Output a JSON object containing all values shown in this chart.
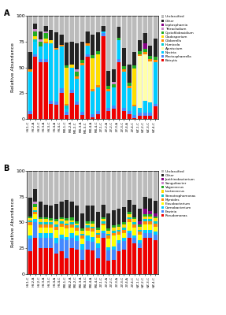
{
  "panel_A": {
    "categories": [
      "HY-1-C",
      "HY-2-A",
      "HY-2-C",
      "HY-3-A",
      "HY-3-C",
      "HY-4-A",
      "HY-4-C",
      "MX-1-C",
      "MX-2-A",
      "MX-2-C",
      "MX-3-A",
      "MX-3-C",
      "MX-4-A",
      "MX-4-C",
      "ZY-1-C",
      "ZY-2-A",
      "ZY-2-C",
      "ZY-3-A",
      "ZY-3-C",
      "ZY-4-A",
      "ZY-4-C",
      "HZ-1-C",
      "HZ-2-C",
      "HZ-3-C",
      "HZ-4-C"
    ],
    "series": {
      "Botrytis": [
        5,
        60,
        55,
        55,
        15,
        14,
        25,
        4,
        25,
        14,
        4,
        60,
        2,
        5,
        80,
        8,
        10,
        55,
        8,
        5,
        1,
        3,
        3,
        3,
        12
      ],
      "Plectosphaerella": [
        3,
        3,
        3,
        3,
        3,
        3,
        5,
        3,
        3,
        3,
        3,
        3,
        3,
        3,
        3,
        3,
        3,
        3,
        3,
        3,
        3,
        3,
        3,
        3,
        3
      ],
      "Nectria": [
        38,
        12,
        12,
        15,
        55,
        50,
        40,
        3,
        22,
        22,
        45,
        8,
        22,
        23,
        2,
        16,
        18,
        18,
        35,
        22,
        8,
        5,
        12,
        10,
        40
      ],
      "Ajoniscium": [
        0,
        0,
        0,
        0,
        0,
        0,
        0,
        0,
        0,
        0,
        0,
        0,
        0,
        0,
        0,
        0,
        0,
        0,
        0,
        0,
        0,
        50,
        45,
        40,
        0
      ],
      "Humicola": [
        0,
        2,
        0,
        0,
        0,
        0,
        0,
        3,
        0,
        0,
        0,
        0,
        0,
        0,
        0,
        0,
        0,
        0,
        0,
        0,
        0,
        0,
        0,
        0,
        0
      ],
      "Gibberella": [
        2,
        0,
        0,
        2,
        0,
        2,
        2,
        2,
        0,
        2,
        2,
        2,
        2,
        2,
        0,
        2,
        0,
        0,
        2,
        2,
        2,
        2,
        2,
        2,
        2
      ],
      "Cladosporium": [
        0,
        3,
        0,
        3,
        3,
        0,
        0,
        35,
        3,
        0,
        0,
        0,
        30,
        30,
        0,
        0,
        0,
        0,
        0,
        0,
        35,
        0,
        0,
        0,
        0
      ],
      "Cystofilobasidium": [
        0,
        5,
        5,
        5,
        0,
        0,
        0,
        2,
        0,
        5,
        3,
        0,
        3,
        3,
        0,
        3,
        3,
        3,
        3,
        3,
        3,
        3,
        3,
        3,
        3
      ],
      "Tetracladium": [
        0,
        2,
        2,
        2,
        0,
        0,
        0,
        0,
        0,
        2,
        0,
        0,
        0,
        0,
        0,
        0,
        2,
        0,
        0,
        0,
        0,
        0,
        0,
        0,
        0
      ],
      "Leptosphaeria": [
        0,
        0,
        0,
        0,
        0,
        0,
        0,
        0,
        0,
        0,
        0,
        0,
        0,
        0,
        0,
        0,
        0,
        0,
        0,
        0,
        0,
        0,
        5,
        0,
        0
      ],
      "Other": [
        17,
        5,
        8,
        5,
        10,
        15,
        10,
        22,
        22,
        25,
        18,
        12,
        20,
        18,
        5,
        15,
        12,
        10,
        18,
        18,
        13,
        10,
        10,
        10,
        18
      ],
      "Unclassified": [
        35,
        8,
        15,
        10,
        14,
        16,
        18,
        26,
        25,
        27,
        25,
        15,
        18,
        16,
        10,
        53,
        52,
        11,
        31,
        47,
        35,
        24,
        17,
        29,
        22
      ]
    },
    "colors": {
      "Botrytis": "#EE0000",
      "Plectosphaerella": "#4488FF",
      "Nectria": "#00CCFF",
      "Ajoniscium": "#FFFFAA",
      "Humicola": "#00CCCC",
      "Gibberella": "#FF8800",
      "Cladosporium": "#FFDD00",
      "Cystofilobasidium": "#22AA22",
      "Tetracladium": "#CC88CC",
      "Leptosphaeria": "#880088",
      "Other": "#222222",
      "Unclassified": "#BBBBBB"
    },
    "legend_order": [
      "Unclassified",
      "Other",
      "Leptosphaeria",
      "Tetracladium",
      "Cystofilobasidium",
      "Cladosporium",
      "Gibberella",
      "Humicola",
      "Ajoniscium",
      "Nectria",
      "Plectosphaerella",
      "Botrytis"
    ]
  },
  "panel_B": {
    "categories": [
      "HY-1-C",
      "HY-2-A",
      "HY-2-C",
      "HY-3-A",
      "HY-3-C",
      "HY-4-A",
      "HY-4-C",
      "MX-1-C",
      "MX-2-A",
      "MX-2-C",
      "MX-3-A",
      "MX-3-C",
      "MX-4-A",
      "MX-4-C",
      "ZY-1-C",
      "ZY-2-A",
      "ZY-2-C",
      "ZY-3-A",
      "ZY-3-C",
      "ZY-4-A",
      "ZY-4-C",
      "HZ-1-C",
      "HZ-2-C",
      "HZ-3-C",
      "HZ-4-C"
    ],
    "series": {
      "Pseudomonas": [
        22,
        35,
        25,
        25,
        25,
        20,
        22,
        15,
        25,
        24,
        14,
        24,
        23,
        15,
        35,
        13,
        14,
        22,
        24,
        35,
        30,
        25,
        35,
        35,
        33
      ],
      "Erwinia": [
        12,
        15,
        10,
        10,
        10,
        10,
        12,
        18,
        10,
        8,
        10,
        8,
        8,
        10,
        5,
        10,
        10,
        8,
        8,
        5,
        5,
        5,
        5,
        5,
        5
      ],
      "Carnobacterium": [
        3,
        3,
        5,
        5,
        5,
        5,
        4,
        3,
        5,
        5,
        5,
        5,
        5,
        5,
        2,
        3,
        3,
        3,
        3,
        2,
        2,
        3,
        3,
        3,
        3
      ],
      "Flavobacterium": [
        10,
        5,
        5,
        5,
        5,
        8,
        8,
        8,
        5,
        5,
        5,
        5,
        5,
        5,
        5,
        8,
        10,
        5,
        5,
        8,
        8,
        5,
        5,
        5,
        5
      ],
      "Myroides": [
        3,
        2,
        3,
        3,
        3,
        3,
        3,
        3,
        3,
        3,
        3,
        3,
        3,
        3,
        2,
        3,
        3,
        3,
        3,
        3,
        3,
        3,
        3,
        3,
        3
      ],
      "Stenotrophomonas": [
        2,
        2,
        2,
        2,
        2,
        2,
        2,
        2,
        2,
        2,
        2,
        2,
        2,
        2,
        2,
        2,
        2,
        2,
        2,
        2,
        2,
        2,
        2,
        2,
        2
      ],
      "Lactococcus": [
        2,
        3,
        3,
        3,
        2,
        3,
        2,
        3,
        2,
        2,
        3,
        2,
        3,
        3,
        2,
        3,
        3,
        3,
        3,
        3,
        3,
        3,
        3,
        3,
        3
      ],
      "Vagococcus": [
        2,
        3,
        2,
        2,
        2,
        2,
        2,
        2,
        3,
        2,
        2,
        2,
        2,
        2,
        2,
        2,
        2,
        2,
        2,
        2,
        2,
        2,
        2,
        2,
        2
      ],
      "Sanguibacter": [
        0,
        2,
        0,
        0,
        0,
        0,
        0,
        0,
        0,
        0,
        0,
        0,
        0,
        0,
        0,
        0,
        0,
        0,
        0,
        0,
        0,
        0,
        0,
        0,
        0
      ],
      "Janthinobacterium": [
        0,
        0,
        0,
        0,
        0,
        0,
        0,
        0,
        0,
        0,
        0,
        0,
        0,
        0,
        0,
        0,
        0,
        0,
        0,
        0,
        0,
        3,
        5,
        3,
        3
      ],
      "Other": [
        18,
        12,
        15,
        12,
        12,
        15,
        15,
        18,
        15,
        15,
        15,
        15,
        15,
        15,
        12,
        15,
        15,
        15,
        15,
        12,
        12,
        12,
        12,
        12,
        12
      ],
      "Unclassified": [
        26,
        18,
        30,
        33,
        34,
        32,
        30,
        28,
        30,
        34,
        41,
        34,
        34,
        40,
        33,
        41,
        38,
        37,
        35,
        28,
        33,
        37,
        25,
        27,
        29
      ]
    },
    "colors": {
      "Pseudomonas": "#EE0000",
      "Erwinia": "#4488FF",
      "Carnobacterium": "#00CCFF",
      "Flavobacterium": "#FFFF00",
      "Myroides": "#FF8800",
      "Stenotrophomonas": "#00CCCC",
      "Lactococcus": "#FFDD00",
      "Vagococcus": "#22AA22",
      "Sanguibacter": "#CC88CC",
      "Janthinobacterium": "#880088",
      "Other": "#222222",
      "Unclassified": "#BBBBBB"
    },
    "legend_order": [
      "Unclassified",
      "Other",
      "Janthinobacterium",
      "Sanguibacter",
      "Vagococcus",
      "Lactococcus",
      "Stenotrophomonas",
      "Myroides",
      "Flavobacterium",
      "Carnobacterium",
      "Erwinia",
      "Pseudomonas"
    ]
  },
  "ylabel": "Relative Abundance",
  "ylim": [
    0,
    100
  ],
  "yticks": [
    0,
    25,
    50,
    75,
    100
  ],
  "bg_color": "#DDDDDD",
  "panel_labels": [
    "A",
    "B"
  ]
}
